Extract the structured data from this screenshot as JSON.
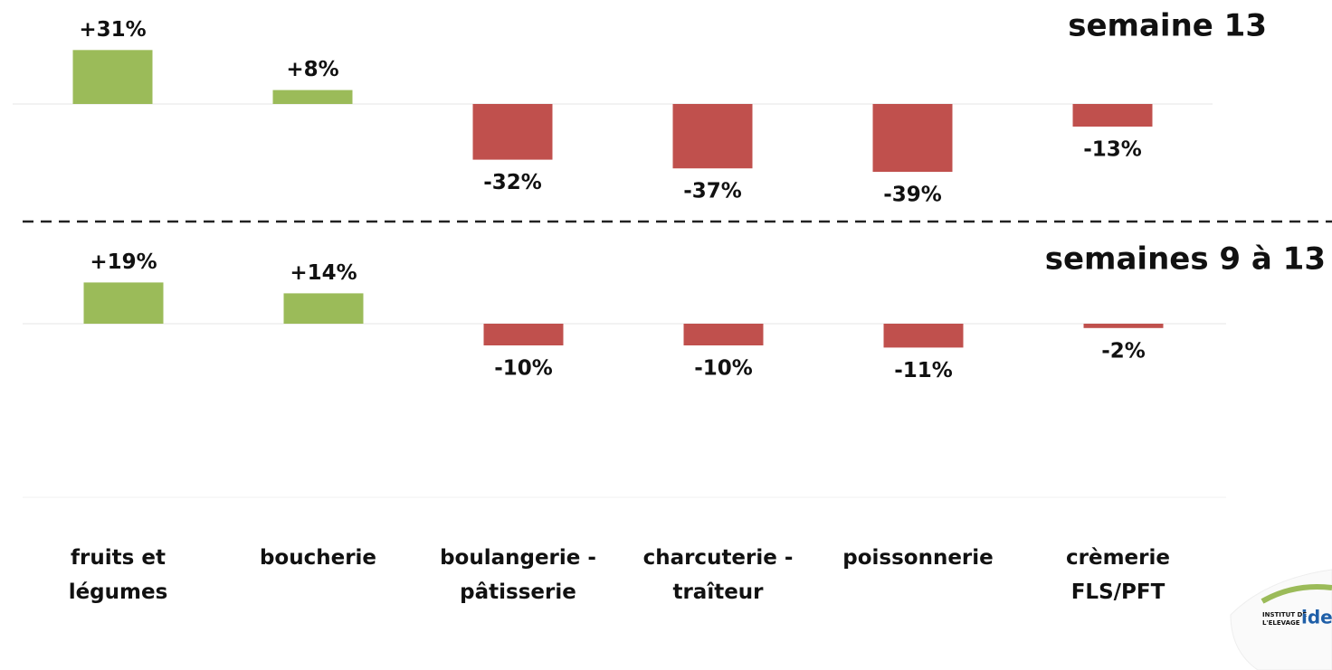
{
  "chart_data": [
    {
      "type": "bar",
      "title": "semaine 13",
      "categories": [
        "fruits et\nlégumes",
        "boucherie",
        "boulangerie -\npâtisserie",
        "charcuterie -\ntraîteur",
        "poissonnerie",
        "crèmerie\nFLS/PFT"
      ],
      "values": [
        31,
        8,
        -32,
        -37,
        -39,
        -13
      ],
      "value_labels": [
        "+31%",
        "+8%",
        "-32%",
        "-37%",
        "-39%",
        "-13%"
      ],
      "colors": {
        "positive": "#9bbb59",
        "negative": "#c0504d"
      },
      "ylim": [
        -40,
        40
      ]
    },
    {
      "type": "bar",
      "title": "semaines 9 à 13",
      "values": [
        19,
        14,
        -10,
        -10,
        -11,
        -2
      ],
      "value_labels": [
        "+19%",
        "+14%",
        "-10%",
        "-10%",
        "-11%",
        "-2%"
      ],
      "colors": {
        "positive": "#9bbb59",
        "negative": "#c0504d"
      },
      "ylim": [
        -20,
        20
      ]
    }
  ],
  "logo": {
    "line1": "INSTITUT DE",
    "line2": "L'ELEVAGE",
    "name": "idele"
  }
}
